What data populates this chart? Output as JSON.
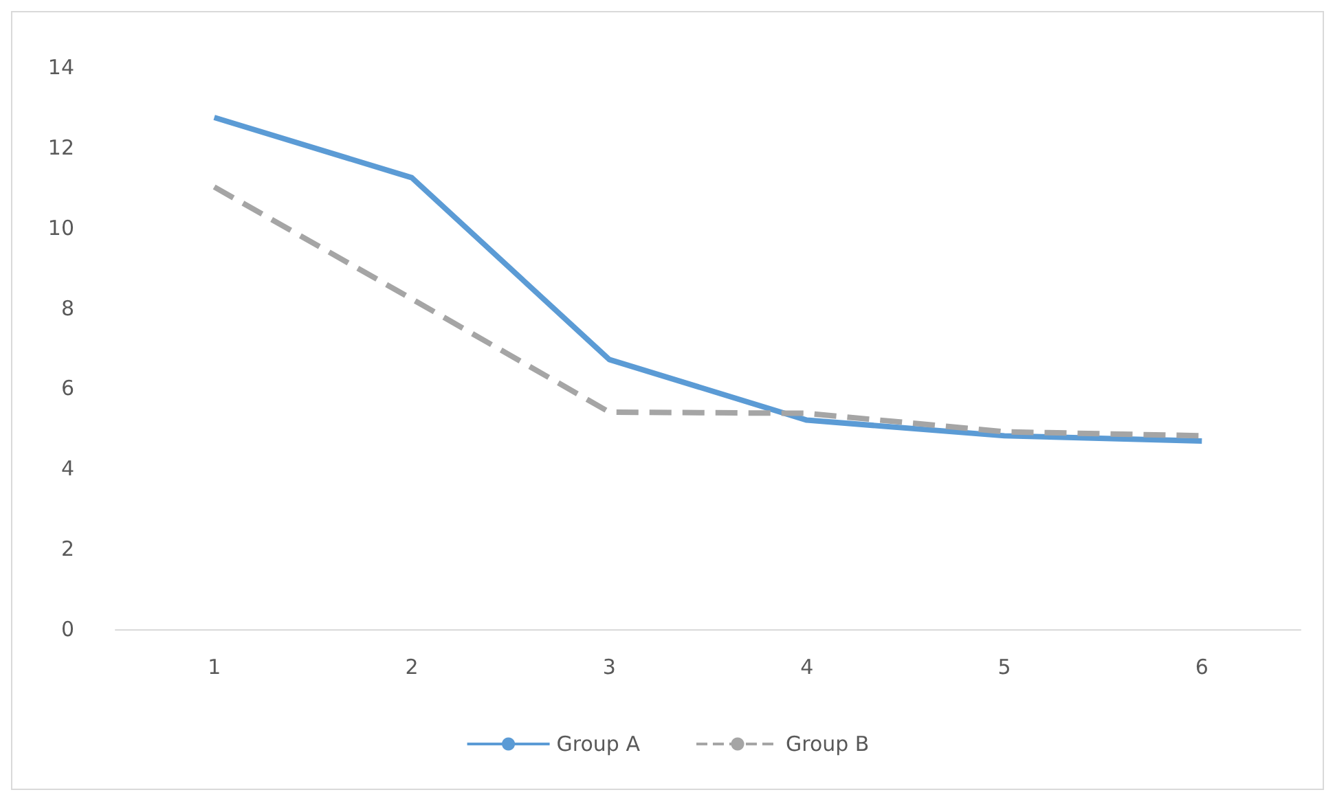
{
  "chart_data": {
    "type": "line",
    "categories": [
      "1",
      "2",
      "3",
      "4",
      "5",
      "6"
    ],
    "series": [
      {
        "name": "Group A",
        "color": "#5b9bd5",
        "line_style": "solid",
        "values": [
          12.75,
          11.25,
          6.72,
          5.21,
          4.82,
          4.69
        ]
      },
      {
        "name": "Group B",
        "color": "#a5a5a5",
        "line_style": "dashed",
        "values": [
          11.02,
          8.23,
          5.41,
          5.38,
          4.92,
          4.82
        ]
      }
    ],
    "ylim": [
      0,
      14
    ],
    "yticks": [
      0,
      2,
      4,
      6,
      8,
      10,
      12,
      14
    ],
    "grid": false,
    "legend": "bottom",
    "marker": "none"
  }
}
